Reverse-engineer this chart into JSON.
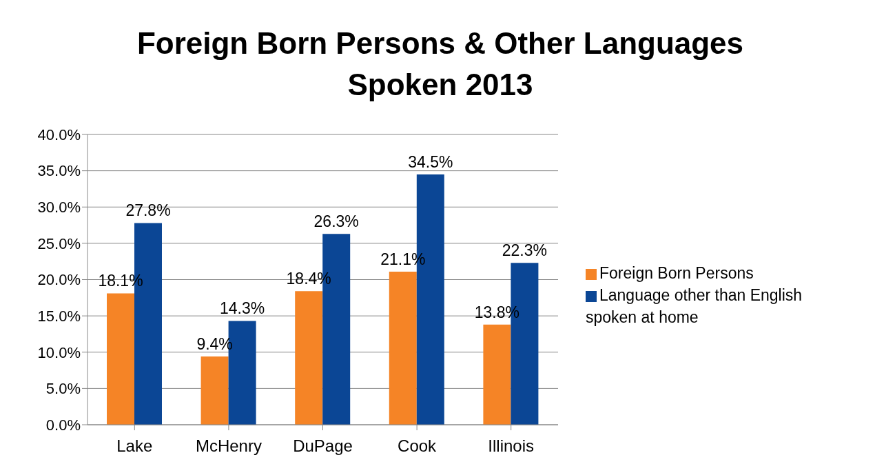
{
  "chart_data": {
    "type": "bar",
    "title": "Foreign Born Persons & Other Languages Spoken 2013",
    "categories": [
      "Lake",
      "McHenry",
      "DuPage",
      "Cook",
      "Illinois"
    ],
    "series": [
      {
        "name": "Foreign Born Persons",
        "color": "#f58426",
        "values": [
          18.1,
          9.4,
          18.4,
          21.1,
          13.8
        ],
        "value_labels": [
          "18.1%",
          "9.4%",
          "18.4%",
          "21.1%",
          "13.8%"
        ]
      },
      {
        "name": "Language other than English spoken at home",
        "color": "#0b4695",
        "values": [
          27.8,
          14.3,
          26.3,
          34.5,
          22.3
        ],
        "value_labels": [
          "27.8%",
          "14.3%",
          "26.3%",
          "34.5%",
          "22.3%"
        ]
      }
    ],
    "ylim": [
      0,
      40
    ],
    "yticks": [
      {
        "value": 0,
        "label": "0.0%"
      },
      {
        "value": 5,
        "label": "5.0%"
      },
      {
        "value": 10,
        "label": "10.0%"
      },
      {
        "value": 15,
        "label": "15.0%"
      },
      {
        "value": 20,
        "label": "20.0%"
      },
      {
        "value": 25,
        "label": "25.0%"
      },
      {
        "value": 30,
        "label": "30.0%"
      },
      {
        "value": 35,
        "label": "35.0%"
      },
      {
        "value": 40,
        "label": "40.0%"
      }
    ],
    "grid": "y",
    "legend": "right"
  }
}
